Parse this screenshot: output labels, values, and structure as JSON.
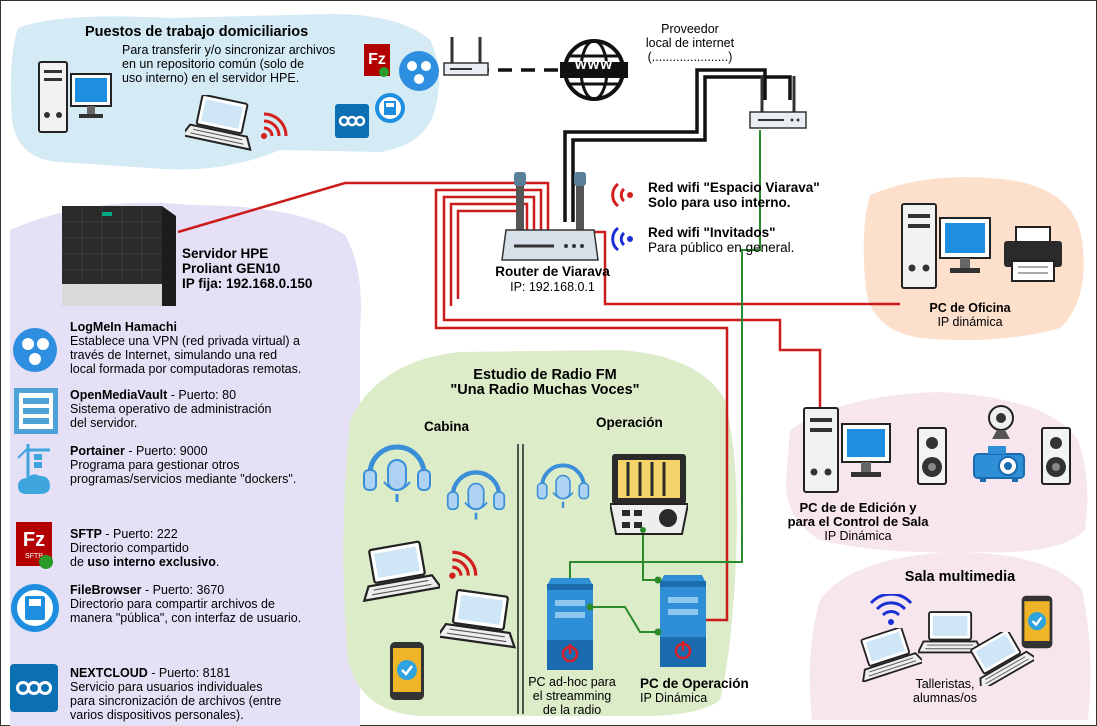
{
  "colors": {
    "home_zone": "#d4eaf4",
    "server_zone": "#e6e0f6",
    "office_zone": "#fce0cc",
    "studio_zone": "#dcebc8",
    "edit_zone": "#f7e6ee",
    "media_zone": "#f7e6ee",
    "lan_red": "#cc1b1b",
    "wan_black": "#111111",
    "studio_green": "#2b8a2b"
  },
  "home": {
    "title": "Puestos de trabajo domiciliarios",
    "desc": [
      "Para transferir y/o sincronizar archivos",
      "en un repositorio común (solo de",
      "uso interno) en el servidor HPE."
    ]
  },
  "isp": {
    "label": [
      "Proveedor",
      "local de internet",
      "(......................)"
    ],
    "icon_text": "www"
  },
  "server": {
    "name": "Servidor HPE",
    "model": "Proliant GEN10",
    "ip": "IP fija: 192.168.0.150"
  },
  "router": {
    "name": "Router de Viarava",
    "ip": "IP: 192.168.0.1"
  },
  "wifi": {
    "internal_title": "Red wifi \"Espacio Viarava\"",
    "internal_sub": "Solo para uso interno.",
    "guest_title": "Red wifi \"Invitados\"",
    "guest_sub": "Para público en general."
  },
  "office": {
    "name": "PC de Oficina",
    "ip": "IP dinámica"
  },
  "services": [
    {
      "icon": "hamachi-icon",
      "name": "LogMeIn Hamachi",
      "port": "",
      "lines": [
        "Establece una VPN (red privada virtual) a",
        "través de Internet, simulando una red",
        "local formada por computadoras remotas."
      ]
    },
    {
      "icon": "openmediavault-icon",
      "name": "OpenMediaVault",
      "port": " - Puerto: 80",
      "lines": [
        "Sistema operativo de administración",
        "del servidor."
      ]
    },
    {
      "icon": "portainer-icon",
      "name": "Portainer",
      "port": " - Puerto: 9000",
      "lines": [
        "Programa para gestionar otros",
        "programas/servicios mediante \"dockers\"."
      ]
    },
    {
      "icon": "filezilla-icon",
      "name": "SFTP",
      "port": " - Puerto: 222",
      "lines": [
        "Directorio compartido"
      ],
      "bold_prefix": "de ",
      "bold_text": "uso interno exclusivo",
      "bold_suffix": "."
    },
    {
      "icon": "filebrowser-icon",
      "name": "FileBrowser",
      "port": " - Puerto: 3670",
      "lines": [
        "Directorio para compartir archivos de",
        "manera \"pública\", con interfaz de usuario."
      ]
    },
    {
      "icon": "nextcloud-icon",
      "name": "NEXTCLOUD",
      "port": " - Puerto: 8181",
      "lines": [
        "Servicio para usuarios individuales",
        "para sincronización de archivos (entre",
        "varios dispositivos personales)."
      ]
    }
  ],
  "studio": {
    "title": [
      "Estudio de Radio FM",
      "\"Una Radio Muchas Voces\""
    ],
    "cabina": "Cabina",
    "operacion": "Operación",
    "adhoc": [
      "PC ad-hoc para",
      "el streamming",
      "de la radio"
    ],
    "op_pc": "PC de Operación",
    "op_ip": "IP Dinámica"
  },
  "edit_pc": {
    "lines": [
      "PC de de Edición y",
      "para el Control de Sala"
    ],
    "ip": "IP Dinámica"
  },
  "media": {
    "title": "Sala multimedia",
    "users": [
      "Talleristas,",
      "alumnas/os"
    ]
  }
}
